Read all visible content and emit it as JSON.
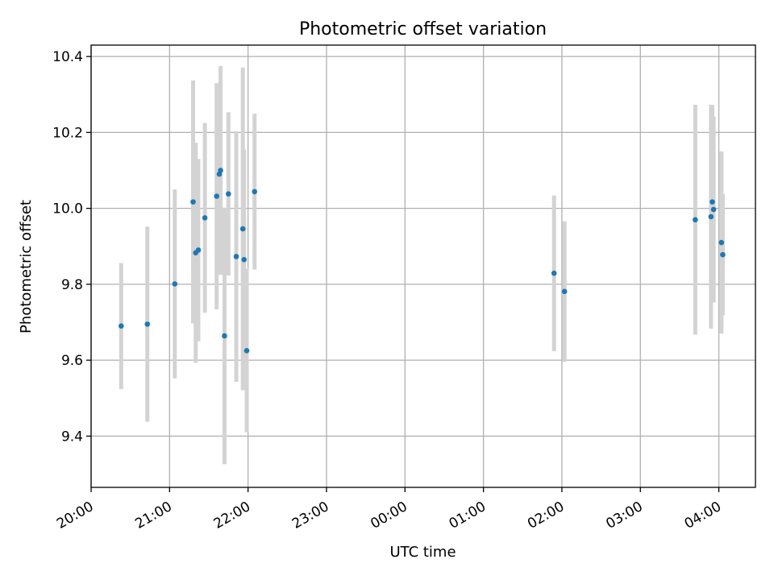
{
  "chart_data": {
    "type": "scatter",
    "title": "Photometric offset variation",
    "xlabel": "UTC time",
    "ylabel": "Photometric offset",
    "x_unit": "UTC date-time",
    "xlim": [
      "2000-01-01T20:00",
      "2000-01-02T04:28"
    ],
    "ylim": [
      9.265,
      10.43
    ],
    "x_ticks": [
      {
        "t": "2000-01-01T20:00",
        "label": "20:00"
      },
      {
        "t": "2000-01-01T21:00",
        "label": "21:00"
      },
      {
        "t": "2000-01-01T22:00",
        "label": "22:00"
      },
      {
        "t": "2000-01-01T23:00",
        "label": "23:00"
      },
      {
        "t": "2000-01-02T00:00",
        "label": "00:00"
      },
      {
        "t": "2000-01-02T01:00",
        "label": "01:00"
      },
      {
        "t": "2000-01-02T02:00",
        "label": "02:00"
      },
      {
        "t": "2000-01-02T03:00",
        "label": "03:00"
      },
      {
        "t": "2000-01-02T04:00",
        "label": "04:00"
      }
    ],
    "y_ticks": [
      {
        "v": 9.4,
        "label": "9.4"
      },
      {
        "v": 9.6,
        "label": "9.6"
      },
      {
        "v": 9.8,
        "label": "9.8"
      },
      {
        "v": 10.0,
        "label": "10.0"
      },
      {
        "v": 10.2,
        "label": "10.2"
      },
      {
        "v": 10.4,
        "label": "10.4"
      }
    ],
    "grid": true,
    "marker_color": "#1f77b4",
    "errorbar_color": "#d3d3d3",
    "points": [
      {
        "t": "2000-01-01T20:23",
        "y": 9.69,
        "err": 0.166
      },
      {
        "t": "2000-01-01T20:43",
        "y": 9.695,
        "err": 0.257
      },
      {
        "t": "2000-01-01T21:04",
        "y": 9.801,
        "err": 0.249
      },
      {
        "t": "2000-01-01T21:18",
        "y": 10.017,
        "err": 0.32
      },
      {
        "t": "2000-01-01T21:20",
        "y": 9.883,
        "err": 0.29
      },
      {
        "t": "2000-01-01T21:22",
        "y": 9.89,
        "err": 0.24
      },
      {
        "t": "2000-01-01T21:27",
        "y": 9.975,
        "err": 0.25
      },
      {
        "t": "2000-01-01T21:36",
        "y": 10.032,
        "err": 0.298
      },
      {
        "t": "2000-01-01T21:38",
        "y": 10.09,
        "err": 0.24
      },
      {
        "t": "2000-01-01T21:39",
        "y": 10.1,
        "err": 0.275
      },
      {
        "t": "2000-01-01T21:42",
        "y": 9.664,
        "err": 0.338
      },
      {
        "t": "2000-01-01T21:45",
        "y": 10.038,
        "err": 0.215
      },
      {
        "t": "2000-01-01T21:51",
        "y": 9.873,
        "err": 0.33
      },
      {
        "t": "2000-01-01T21:56",
        "y": 9.946,
        "err": 0.425
      },
      {
        "t": "2000-01-01T21:57",
        "y": 9.865,
        "err": 0.29
      },
      {
        "t": "2000-01-01T21:59",
        "y": 9.625,
        "err": 0.215
      },
      {
        "t": "2000-01-01T22:05",
        "y": 10.044,
        "err": 0.205
      },
      {
        "t": "2000-01-02T01:54",
        "y": 9.829,
        "err": 0.205
      },
      {
        "t": "2000-01-02T02:02",
        "y": 9.781,
        "err": 0.185
      },
      {
        "t": "2000-01-02T03:42",
        "y": 9.97,
        "err": 0.303
      },
      {
        "t": "2000-01-02T03:54",
        "y": 9.978,
        "err": 0.295
      },
      {
        "t": "2000-01-02T03:55",
        "y": 10.017,
        "err": 0.255
      },
      {
        "t": "2000-01-02T03:56",
        "y": 9.997,
        "err": 0.245
      },
      {
        "t": "2000-01-02T04:02",
        "y": 9.91,
        "err": 0.24
      },
      {
        "t": "2000-01-02T04:03",
        "y": 9.878,
        "err": 0.16
      }
    ]
  }
}
